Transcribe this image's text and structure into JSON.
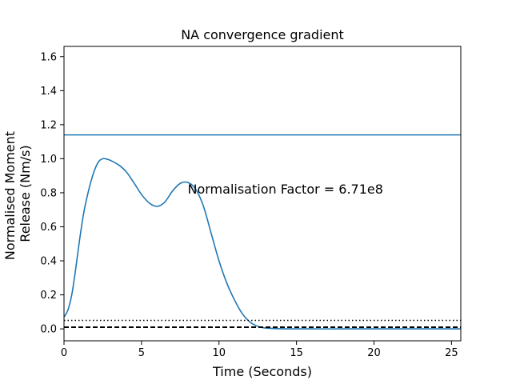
{
  "chart_data": {
    "type": "line",
    "title": "NA convergence gradient",
    "xlabel": "Time (Seconds)",
    "ylabel_lines": [
      "Normalised Moment",
      "Release (Nm/s)"
    ],
    "xlim": [
      0,
      25.6
    ],
    "ylim": [
      -0.07,
      1.66
    ],
    "xticks": [
      0,
      5,
      10,
      15,
      20,
      25
    ],
    "yticks": [
      0.0,
      0.2,
      0.4,
      0.6,
      0.8,
      1.0,
      1.2,
      1.4,
      1.6
    ],
    "grid": false,
    "annotation": {
      "text": "Normalisation Factor = 6.71e8",
      "x": 8.0,
      "y": 0.8
    },
    "colors": {
      "series": "#1f77b4",
      "reference": "#000000"
    },
    "series": [
      {
        "style": "solid",
        "x": [
          0,
          0.25,
          0.5,
          0.75,
          1.0,
          1.25,
          1.5,
          1.75,
          2.0,
          2.25,
          2.5,
          2.75,
          3.0,
          3.5,
          4.0,
          4.5,
          5.0,
          5.5,
          6.0,
          6.5,
          7.0,
          7.5,
          8.0,
          8.5,
          9.0,
          9.5,
          10.0,
          10.5,
          11.0,
          11.5,
          12.0,
          12.5,
          13.0,
          14.0,
          16.0,
          18.0,
          20.0,
          22.0,
          24.0,
          25.6
        ],
        "y": [
          0.07,
          0.11,
          0.2,
          0.35,
          0.52,
          0.67,
          0.78,
          0.87,
          0.94,
          0.985,
          1.0,
          0.998,
          0.99,
          0.965,
          0.925,
          0.86,
          0.79,
          0.74,
          0.72,
          0.745,
          0.81,
          0.855,
          0.86,
          0.82,
          0.72,
          0.56,
          0.4,
          0.27,
          0.17,
          0.09,
          0.04,
          0.015,
          0.005,
          0.001,
          0.0,
          0.0,
          0.0,
          0.0,
          0.0,
          0.0
        ]
      },
      {
        "style": "hline",
        "y": 1.14
      },
      {
        "style": "dotted",
        "y": 0.05
      },
      {
        "style": "dashed",
        "y": 0.01
      }
    ]
  }
}
